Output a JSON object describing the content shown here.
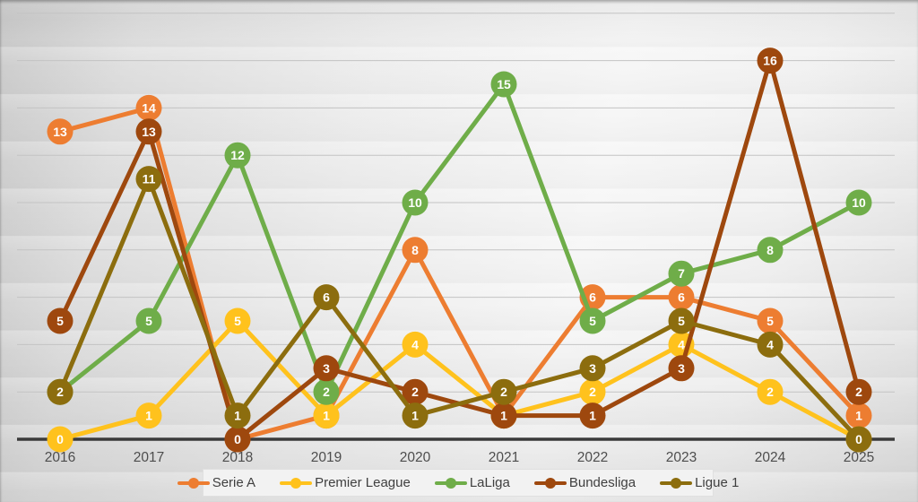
{
  "chart_data": {
    "type": "line",
    "title": "",
    "xlabel": "",
    "ylabel": "",
    "x": [
      "2016",
      "2017",
      "2018",
      "2019",
      "2020",
      "2021",
      "2022",
      "2023",
      "2024",
      "2025"
    ],
    "series": [
      {
        "name": "Serie A",
        "color": "#ED7D31",
        "values": [
          13,
          14,
          0,
          1,
          8,
          1,
          6,
          6,
          5,
          1
        ]
      },
      {
        "name": "Premier League",
        "color": "#FFC21D",
        "values": [
          0,
          1,
          5,
          1,
          4,
          1,
          2,
          4,
          2,
          0
        ]
      },
      {
        "name": "LaLiga",
        "color": "#6FAD49",
        "values": [
          2,
          5,
          12,
          2,
          10,
          15,
          5,
          7,
          8,
          10
        ]
      },
      {
        "name": "Bundesliga",
        "color": "#9E480E",
        "values": [
          5,
          13,
          0,
          3,
          2,
          1,
          1,
          3,
          16,
          2
        ]
      },
      {
        "name": "Ligue 1",
        "color": "#8C6D0E",
        "values": [
          2,
          11,
          1,
          6,
          1,
          2,
          3,
          5,
          4,
          0
        ]
      }
    ],
    "ylim": [
      0,
      18
    ],
    "grid": true,
    "grid_interval": 2,
    "y_axis_labels_visible": false,
    "data_labels": "inside-marker",
    "legend_position": "bottom-center"
  },
  "colors": {
    "gridline": "#c3c3c3",
    "axis_line": "#3a3a3a",
    "tick_label": "#4d4d4d",
    "legend_text": "#3f3f3f",
    "legend_background": "#f2f2f2",
    "marker_label": "#ffffff"
  }
}
